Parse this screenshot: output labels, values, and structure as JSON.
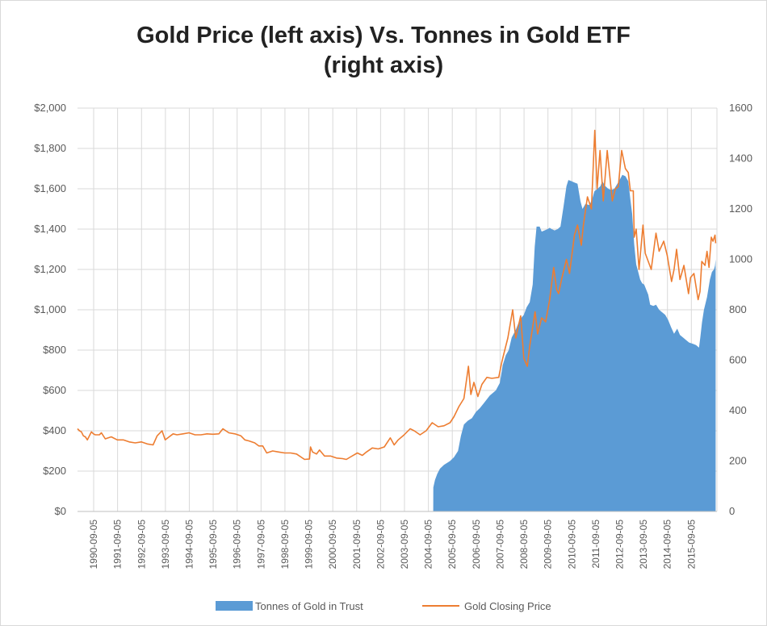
{
  "chart_data": {
    "type": "area",
    "title_lines": [
      "Gold Price (left axis) Vs. Tonnes in Gold ETF",
      "(right axis)"
    ],
    "xlabel": "",
    "ylabel_left": "",
    "ylabel_right": "",
    "x_tick_labels": [
      "1990-09-05",
      "1991-09-05",
      "1992-09-05",
      "1993-09-05",
      "1994-09-05",
      "1995-09-05",
      "1996-09-05",
      "1997-09-05",
      "1998-09-05",
      "1999-09-05",
      "2000-09-05",
      "2001-09-05",
      "2002-09-05",
      "2003-09-05",
      "2004-09-05",
      "2005-09-05",
      "2006-09-05",
      "2007-09-05",
      "2008-09-05",
      "2009-09-05",
      "2010-09-05",
      "2011-09-05",
      "2012-09-05",
      "2013-09-05",
      "2014-09-05",
      "2015-09-05"
    ],
    "y_left_ticks": [
      "$0",
      "$200",
      "$400",
      "$600",
      "$800",
      "$1,000",
      "$1,200",
      "$1,400",
      "$1,600",
      "$1,800",
      "$2,000"
    ],
    "y_right_ticks": [
      "0",
      "200",
      "400",
      "600",
      "800",
      "1000",
      "1200",
      "1400",
      "1600"
    ],
    "y_left_range": [
      0,
      2000
    ],
    "y_right_range": [
      0,
      1600
    ],
    "x_range": [
      "1990-01-01",
      "2016-09-30"
    ],
    "grid": true,
    "legend_position": "bottom",
    "colors": {
      "tonnes": "#5b9bd5",
      "price": "#ed7d31",
      "grid": "#d9d9d9",
      "axis": "#bfbfbf"
    },
    "series": [
      {
        "name": "Tonnes of Gold in Trust",
        "kind": "area",
        "axis": "right",
        "points": [
          [
            "2004-11-18",
            0
          ],
          [
            "2004-11-19",
            95
          ],
          [
            "2004-12-15",
            125
          ],
          [
            "2005-01-20",
            150
          ],
          [
            "2005-03-01",
            170
          ],
          [
            "2005-05-01",
            185
          ],
          [
            "2005-08-01",
            200
          ],
          [
            "2005-10-01",
            215
          ],
          [
            "2005-12-01",
            240
          ],
          [
            "2006-01-15",
            300
          ],
          [
            "2006-03-01",
            345
          ],
          [
            "2006-05-01",
            360
          ],
          [
            "2006-07-01",
            370
          ],
          [
            "2006-09-01",
            395
          ],
          [
            "2006-11-01",
            410
          ],
          [
            "2007-01-01",
            430
          ],
          [
            "2007-04-01",
            460
          ],
          [
            "2007-07-01",
            480
          ],
          [
            "2007-09-01",
            510
          ],
          [
            "2007-10-15",
            580
          ],
          [
            "2007-12-01",
            620
          ],
          [
            "2008-01-15",
            640
          ],
          [
            "2008-03-01",
            690
          ],
          [
            "2008-05-01",
            720
          ],
          [
            "2008-07-01",
            760
          ],
          [
            "2008-09-01",
            780
          ],
          [
            "2008-10-15",
            810
          ],
          [
            "2008-12-01",
            830
          ],
          [
            "2009-01-15",
            900
          ],
          [
            "2009-02-15",
            1050
          ],
          [
            "2009-03-15",
            1130
          ],
          [
            "2009-05-01",
            1130
          ],
          [
            "2009-06-01",
            1110
          ],
          [
            "2009-07-15",
            1115
          ],
          [
            "2009-09-01",
            1120
          ],
          [
            "2009-10-01",
            1125
          ],
          [
            "2009-11-01",
            1120
          ],
          [
            "2009-12-15",
            1115
          ],
          [
            "2010-02-01",
            1120
          ],
          [
            "2010-03-15",
            1130
          ],
          [
            "2010-05-01",
            1210
          ],
          [
            "2010-06-15",
            1290
          ],
          [
            "2010-07-15",
            1315
          ],
          [
            "2010-09-01",
            1310
          ],
          [
            "2010-10-15",
            1305
          ],
          [
            "2010-12-01",
            1300
          ],
          [
            "2011-01-15",
            1230
          ],
          [
            "2011-02-15",
            1200
          ],
          [
            "2011-04-01",
            1220
          ],
          [
            "2011-06-01",
            1215
          ],
          [
            "2011-07-15",
            1240
          ],
          [
            "2011-08-15",
            1270
          ],
          [
            "2011-10-01",
            1280
          ],
          [
            "2011-11-15",
            1290
          ],
          [
            "2011-12-15",
            1310
          ],
          [
            "2012-02-01",
            1290
          ],
          [
            "2012-03-15",
            1280
          ],
          [
            "2012-05-01",
            1275
          ],
          [
            "2012-06-15",
            1280
          ],
          [
            "2012-08-01",
            1300
          ],
          [
            "2012-09-15",
            1320
          ],
          [
            "2012-10-15",
            1335
          ],
          [
            "2012-12-01",
            1330
          ],
          [
            "2013-01-15",
            1310
          ],
          [
            "2013-02-15",
            1240
          ],
          [
            "2013-03-15",
            1180
          ],
          [
            "2013-04-15",
            1060
          ],
          [
            "2013-05-15",
            980
          ],
          [
            "2013-06-15",
            950
          ],
          [
            "2013-07-15",
            920
          ],
          [
            "2013-08-15",
            905
          ],
          [
            "2013-09-15",
            900
          ],
          [
            "2013-10-15",
            880
          ],
          [
            "2013-11-15",
            860
          ],
          [
            "2013-12-15",
            820
          ],
          [
            "2014-02-01",
            815
          ],
          [
            "2014-03-15",
            820
          ],
          [
            "2014-05-01",
            800
          ],
          [
            "2014-06-15",
            790
          ],
          [
            "2014-08-01",
            780
          ],
          [
            "2014-09-15",
            760
          ],
          [
            "2014-11-01",
            730
          ],
          [
            "2014-12-15",
            705
          ],
          [
            "2015-02-01",
            725
          ],
          [
            "2015-03-15",
            700
          ],
          [
            "2015-05-01",
            690
          ],
          [
            "2015-06-15",
            680
          ],
          [
            "2015-08-01",
            670
          ],
          [
            "2015-10-01",
            665
          ],
          [
            "2015-11-15",
            660
          ],
          [
            "2015-12-31",
            650
          ],
          [
            "2016-01-20",
            690
          ],
          [
            "2016-02-15",
            750
          ],
          [
            "2016-03-15",
            800
          ],
          [
            "2016-05-01",
            850
          ],
          [
            "2016-06-15",
            920
          ],
          [
            "2016-07-15",
            950
          ],
          [
            "2016-08-15",
            960
          ],
          [
            "2016-09-01",
            975
          ],
          [
            "2016-09-10",
            1000
          ]
        ]
      },
      {
        "name": "Gold Closing Price",
        "kind": "line",
        "axis": "left",
        "points": [
          [
            "1990-01-01",
            410
          ],
          [
            "1990-02-01",
            400
          ],
          [
            "1990-03-01",
            395
          ],
          [
            "1990-04-01",
            375
          ],
          [
            "1990-05-01",
            370
          ],
          [
            "1990-06-01",
            355
          ],
          [
            "1990-08-01",
            395
          ],
          [
            "1990-09-01",
            385
          ],
          [
            "1990-10-01",
            380
          ],
          [
            "1990-12-01",
            380
          ],
          [
            "1991-01-01",
            390
          ],
          [
            "1991-03-01",
            360
          ],
          [
            "1991-06-01",
            370
          ],
          [
            "1991-09-01",
            355
          ],
          [
            "1991-12-01",
            355
          ],
          [
            "1992-03-01",
            345
          ],
          [
            "1992-06-01",
            340
          ],
          [
            "1992-09-01",
            345
          ],
          [
            "1992-12-01",
            335
          ],
          [
            "1993-03-01",
            330
          ],
          [
            "1993-05-01",
            375
          ],
          [
            "1993-07-15",
            400
          ],
          [
            "1993-09-01",
            355
          ],
          [
            "1993-11-01",
            370
          ],
          [
            "1994-01-01",
            385
          ],
          [
            "1994-03-01",
            380
          ],
          [
            "1994-06-01",
            385
          ],
          [
            "1994-09-01",
            390
          ],
          [
            "1994-12-01",
            380
          ],
          [
            "1995-03-01",
            380
          ],
          [
            "1995-06-01",
            385
          ],
          [
            "1995-09-01",
            383
          ],
          [
            "1995-12-01",
            385
          ],
          [
            "1996-02-01",
            410
          ],
          [
            "1996-05-01",
            390
          ],
          [
            "1996-08-01",
            385
          ],
          [
            "1996-11-01",
            375
          ],
          [
            "1997-01-01",
            355
          ],
          [
            "1997-03-01",
            350
          ],
          [
            "1997-06-01",
            340
          ],
          [
            "1997-08-01",
            325
          ],
          [
            "1997-10-01",
            325
          ],
          [
            "1997-12-01",
            290
          ],
          [
            "1998-03-01",
            300
          ],
          [
            "1998-06-01",
            295
          ],
          [
            "1998-09-01",
            290
          ],
          [
            "1998-12-01",
            290
          ],
          [
            "1999-03-01",
            285
          ],
          [
            "1999-07-01",
            258
          ],
          [
            "1999-09-15",
            260
          ],
          [
            "1999-10-01",
            320
          ],
          [
            "1999-11-01",
            295
          ],
          [
            "2000-01-01",
            285
          ],
          [
            "2000-02-15",
            305
          ],
          [
            "2000-05-01",
            275
          ],
          [
            "2000-08-01",
            275
          ],
          [
            "2000-11-01",
            265
          ],
          [
            "2001-02-01",
            262
          ],
          [
            "2001-04-01",
            258
          ],
          [
            "2001-06-01",
            270
          ],
          [
            "2001-09-15",
            290
          ],
          [
            "2001-12-01",
            278
          ],
          [
            "2002-02-01",
            295
          ],
          [
            "2002-05-01",
            315
          ],
          [
            "2002-08-01",
            310
          ],
          [
            "2002-11-01",
            320
          ],
          [
            "2003-02-01",
            365
          ],
          [
            "2003-04-01",
            330
          ],
          [
            "2003-06-01",
            355
          ],
          [
            "2003-09-01",
            380
          ],
          [
            "2003-12-01",
            410
          ],
          [
            "2004-02-01",
            400
          ],
          [
            "2004-05-01",
            380
          ],
          [
            "2004-08-01",
            400
          ],
          [
            "2004-11-01",
            440
          ],
          [
            "2005-02-01",
            420
          ],
          [
            "2005-05-01",
            425
          ],
          [
            "2005-08-01",
            440
          ],
          [
            "2005-10-01",
            470
          ],
          [
            "2005-12-15",
            520
          ],
          [
            "2006-03-01",
            560
          ],
          [
            "2006-05-10",
            720
          ],
          [
            "2006-06-15",
            580
          ],
          [
            "2006-08-01",
            640
          ],
          [
            "2006-10-01",
            570
          ],
          [
            "2006-12-01",
            630
          ],
          [
            "2007-02-15",
            665
          ],
          [
            "2007-05-01",
            660
          ],
          [
            "2007-08-15",
            665
          ],
          [
            "2007-10-01",
            740
          ],
          [
            "2007-11-15",
            800
          ],
          [
            "2008-01-01",
            860
          ],
          [
            "2008-03-15",
            1000
          ],
          [
            "2008-05-01",
            860
          ],
          [
            "2008-07-15",
            970
          ],
          [
            "2008-09-01",
            760
          ],
          [
            "2008-10-24",
            720
          ],
          [
            "2008-12-01",
            820
          ],
          [
            "2009-02-20",
            990
          ],
          [
            "2009-04-01",
            880
          ],
          [
            "2009-06-01",
            960
          ],
          [
            "2009-08-01",
            940
          ],
          [
            "2009-10-01",
            1050
          ],
          [
            "2009-12-02",
            1210
          ],
          [
            "2010-01-15",
            1100
          ],
          [
            "2010-02-15",
            1080
          ],
          [
            "2010-04-01",
            1150
          ],
          [
            "2010-06-15",
            1250
          ],
          [
            "2010-08-01",
            1180
          ],
          [
            "2010-10-15",
            1370
          ],
          [
            "2010-12-01",
            1420
          ],
          [
            "2011-01-28",
            1320
          ],
          [
            "2011-03-01",
            1420
          ],
          [
            "2011-05-01",
            1560
          ],
          [
            "2011-07-01",
            1500
          ],
          [
            "2011-08-22",
            1890
          ],
          [
            "2011-09-26",
            1600
          ],
          [
            "2011-11-10",
            1790
          ],
          [
            "2011-12-29",
            1540
          ],
          [
            "2012-02-28",
            1790
          ],
          [
            "2012-05-16",
            1540
          ],
          [
            "2012-07-01",
            1600
          ],
          [
            "2012-08-15",
            1610
          ],
          [
            "2012-10-05",
            1790
          ],
          [
            "2012-12-01",
            1700
          ],
          [
            "2013-01-15",
            1680
          ],
          [
            "2013-02-15",
            1590
          ],
          [
            "2013-04-01",
            1590
          ],
          [
            "2013-04-15",
            1360
          ],
          [
            "2013-05-15",
            1400
          ],
          [
            "2013-06-28",
            1200
          ],
          [
            "2013-08-27",
            1420
          ],
          [
            "2013-10-01",
            1280
          ],
          [
            "2013-12-31",
            1200
          ],
          [
            "2014-03-14",
            1380
          ],
          [
            "2014-05-01",
            1290
          ],
          [
            "2014-07-10",
            1340
          ],
          [
            "2014-09-01",
            1270
          ],
          [
            "2014-11-07",
            1140
          ],
          [
            "2014-12-15",
            1200
          ],
          [
            "2015-01-22",
            1300
          ],
          [
            "2015-03-15",
            1150
          ],
          [
            "2015-05-15",
            1220
          ],
          [
            "2015-07-24",
            1080
          ],
          [
            "2015-08-24",
            1160
          ],
          [
            "2015-10-15",
            1180
          ],
          [
            "2015-12-17",
            1050
          ],
          [
            "2016-01-15",
            1090
          ],
          [
            "2016-02-11",
            1240
          ],
          [
            "2016-04-01",
            1220
          ],
          [
            "2016-05-01",
            1290
          ],
          [
            "2016-06-01",
            1210
          ],
          [
            "2016-07-06",
            1360
          ],
          [
            "2016-08-01",
            1340
          ],
          [
            "2016-09-01",
            1370
          ],
          [
            "2016-09-10",
            1330
          ]
        ]
      }
    ]
  }
}
